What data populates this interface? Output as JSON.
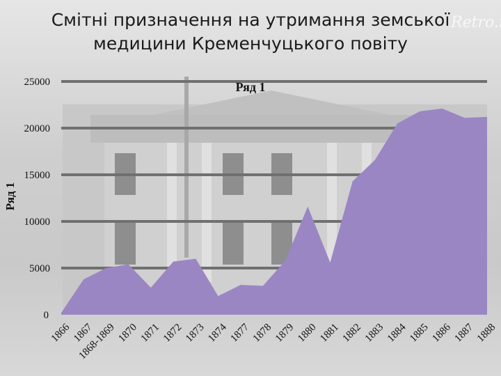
{
  "title": "Смітні призначення на утримання земської медицини Кременчуцького повіту",
  "watermark": "Retro.ru",
  "chart_data": {
    "type": "area",
    "title": "Смітні призначення на утримання земської медицини Кременчуцького повіту",
    "ylabel": "Ряд 1",
    "xlabel": "",
    "ylim": [
      0,
      25000
    ],
    "yticks": [
      0,
      5000,
      10000,
      15000,
      20000,
      25000
    ],
    "grid": true,
    "categories": [
      "1866",
      "1867",
      "1868-1869",
      "1870",
      "1871",
      "1872",
      "1873",
      "1874",
      "1877",
      "1878",
      "1879",
      "1880",
      "1881",
      "1882",
      "1883",
      "1884",
      "1885",
      "1886",
      "1887",
      "1888"
    ],
    "series": [
      {
        "name": "Ряд 1",
        "color": "#9b86c4",
        "values": [
          200,
          3800,
          5000,
          5400,
          2900,
          5700,
          6000,
          2000,
          3200,
          3100,
          5800,
          11600,
          5600,
          14300,
          16600,
          20500,
          21800,
          22100,
          21100,
          21200
        ]
      }
    ]
  }
}
